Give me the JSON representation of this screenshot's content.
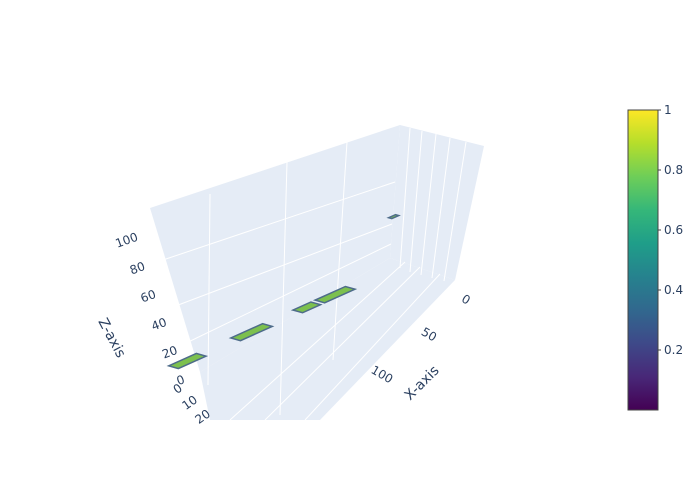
{
  "chart_data": {
    "type": "surface",
    "colorscale": "Viridis",
    "colorscale_stops": [
      "#440154",
      "#482878",
      "#3e4989",
      "#31688e",
      "#26828e",
      "#1f9e89",
      "#35b779",
      "#6ece58",
      "#b5de2b",
      "#fde725"
    ],
    "surface_color": "#7cc04e",
    "edge_color": "#4e6c8a",
    "scene_bg": "#e5ecf6",
    "x_axis": {
      "title": "X-axis",
      "tick_values": [
        0,
        50,
        100
      ],
      "tick_labels": [
        "0",
        "50",
        "100"
      ]
    },
    "y_axis": {
      "title": "",
      "tick_values": [
        0,
        10,
        20
      ],
      "tick_labels": [
        "0",
        "10",
        "20"
      ]
    },
    "z_axis": {
      "title": "Z-axis",
      "tick_values": [
        0,
        20,
        40,
        60,
        80,
        100
      ],
      "tick_labels": [
        "0",
        "20",
        "40",
        "60",
        "80",
        "100"
      ]
    },
    "colorbar": {
      "range": [
        0,
        1
      ],
      "tick_values": [
        0.2,
        0.4,
        0.6,
        0.8,
        1
      ],
      "tick_labels": [
        "0.2",
        "0.4",
        "0.6",
        "0.8",
        "1"
      ]
    },
    "surface_patches": [
      {
        "x": [
          148,
          168
        ],
        "y": [
          8,
          14
        ],
        "z": 0,
        "value": 0.78
      },
      {
        "x": [
          100,
          123
        ],
        "y": [
          8,
          14
        ],
        "z": 0,
        "value": 0.8
      },
      {
        "x": [
          65,
          78
        ],
        "y": [
          8,
          14
        ],
        "z": 0,
        "value": 0.78
      },
      {
        "x": [
          40,
          62
        ],
        "y": [
          8,
          14
        ],
        "z": 0,
        "value": 0.8
      },
      {
        "x": [
          6,
          11
        ],
        "y": [
          10,
          12
        ],
        "z": 110,
        "value": 0.79
      }
    ]
  }
}
